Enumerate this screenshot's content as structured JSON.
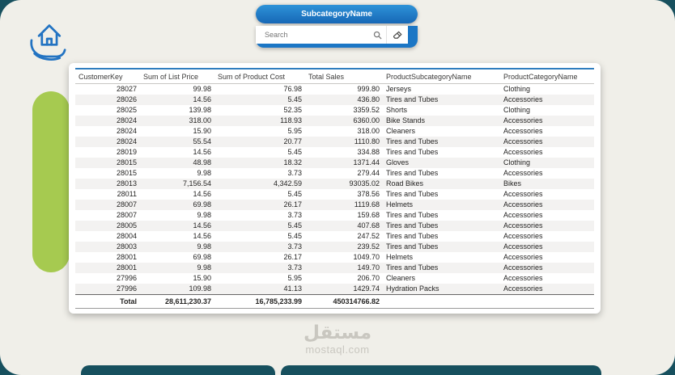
{
  "slicer": {
    "title": "SubcategoryName",
    "search_placeholder": "Search"
  },
  "table": {
    "columns": [
      "CustomerKey",
      "Sum of List Price",
      "Sum of Product Cost",
      "Total Sales",
      "ProductSubcategoryName",
      "ProductCategoryName"
    ],
    "rows": [
      [
        "28027",
        "99.98",
        "76.98",
        "999.80",
        "Jerseys",
        "Clothing"
      ],
      [
        "28026",
        "14.56",
        "5.45",
        "436.80",
        "Tires and Tubes",
        "Accessories"
      ],
      [
        "28025",
        "139.98",
        "52.35",
        "3359.52",
        "Shorts",
        "Clothing"
      ],
      [
        "28024",
        "318.00",
        "118.93",
        "6360.00",
        "Bike Stands",
        "Accessories"
      ],
      [
        "28024",
        "15.90",
        "5.95",
        "318.00",
        "Cleaners",
        "Accessories"
      ],
      [
        "28024",
        "55.54",
        "20.77",
        "1110.80",
        "Tires and Tubes",
        "Accessories"
      ],
      [
        "28019",
        "14.56",
        "5.45",
        "334.88",
        "Tires and Tubes",
        "Accessories"
      ],
      [
        "28015",
        "48.98",
        "18.32",
        "1371.44",
        "Gloves",
        "Clothing"
      ],
      [
        "28015",
        "9.98",
        "3.73",
        "279.44",
        "Tires and Tubes",
        "Accessories"
      ],
      [
        "28013",
        "7,156.54",
        "4,342.59",
        "93035.02",
        "Road Bikes",
        "Bikes"
      ],
      [
        "28011",
        "14.56",
        "5.45",
        "378.56",
        "Tires and Tubes",
        "Accessories"
      ],
      [
        "28007",
        "69.98",
        "26.17",
        "1119.68",
        "Helmets",
        "Accessories"
      ],
      [
        "28007",
        "9.98",
        "3.73",
        "159.68",
        "Tires and Tubes",
        "Accessories"
      ],
      [
        "28005",
        "14.56",
        "5.45",
        "407.68",
        "Tires and Tubes",
        "Accessories"
      ],
      [
        "28004",
        "14.56",
        "5.45",
        "247.52",
        "Tires and Tubes",
        "Accessories"
      ],
      [
        "28003",
        "9.98",
        "3.73",
        "239.52",
        "Tires and Tubes",
        "Accessories"
      ],
      [
        "28001",
        "69.98",
        "26.17",
        "1049.70",
        "Helmets",
        "Accessories"
      ],
      [
        "28001",
        "9.98",
        "3.73",
        "149.70",
        "Tires and Tubes",
        "Accessories"
      ],
      [
        "27996",
        "15.90",
        "5.95",
        "206.70",
        "Cleaners",
        "Accessories"
      ],
      [
        "27996",
        "109.98",
        "41.13",
        "1429.74",
        "Hydration Packs",
        "Accessories"
      ]
    ],
    "total_row": [
      "Total",
      "28,611,230.37",
      "16,785,233.99",
      "450314766.82",
      "",
      ""
    ]
  },
  "watermark": {
    "arabic": "مستقل",
    "domain": "mostaql.com"
  },
  "colors": {
    "frame_teal": "#17505e",
    "accent_blue": "#1b76c5",
    "lime_green": "#a6ca50",
    "canvas_bg": "#f0efe9"
  }
}
